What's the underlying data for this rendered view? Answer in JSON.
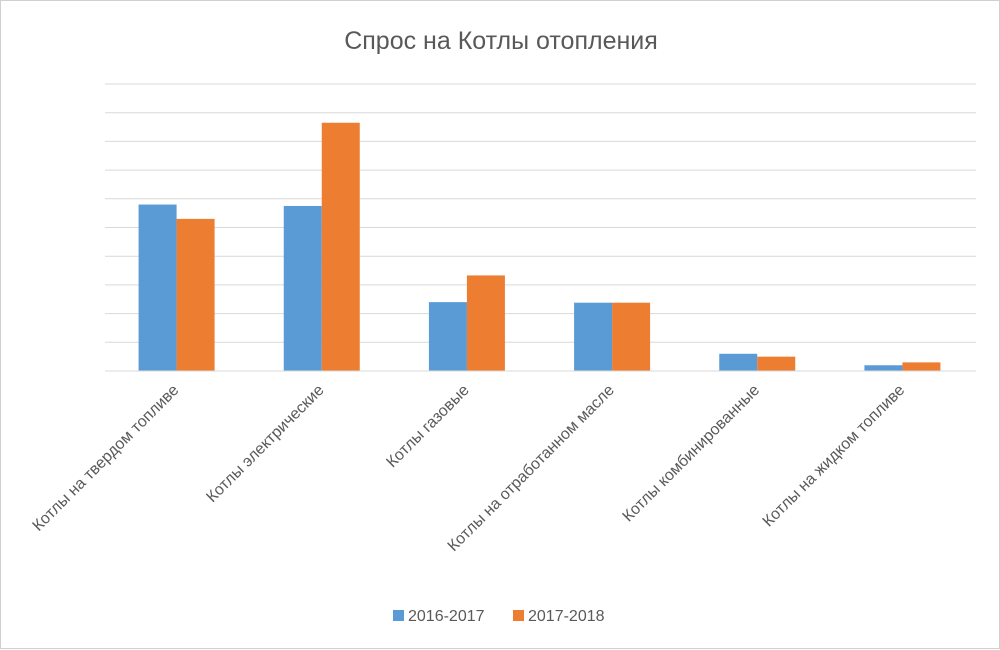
{
  "chart_data": {
    "type": "bar",
    "title": "Спрос на Котлы отопления",
    "xlabel": "",
    "ylabel": "",
    "ylim": [
      0,
      10
    ],
    "y_tick_count": 10,
    "grid": true,
    "legend_position": "bottom",
    "categories": [
      "Котлы на твердом топливе",
      "Котлы электрические",
      "Котлы газовые",
      "Котлы на отработанном масле",
      "Котлы комбинированные",
      "Котлы на жидком топливе"
    ],
    "series": [
      {
        "name": "2016-2017",
        "color": "#5b9bd5",
        "values": [
          5.8,
          5.75,
          2.4,
          2.38,
          0.6,
          0.2
        ]
      },
      {
        "name": "2017-2018",
        "color": "#ed7d31",
        "values": [
          5.3,
          8.65,
          3.33,
          2.38,
          0.5,
          0.3
        ]
      }
    ]
  }
}
